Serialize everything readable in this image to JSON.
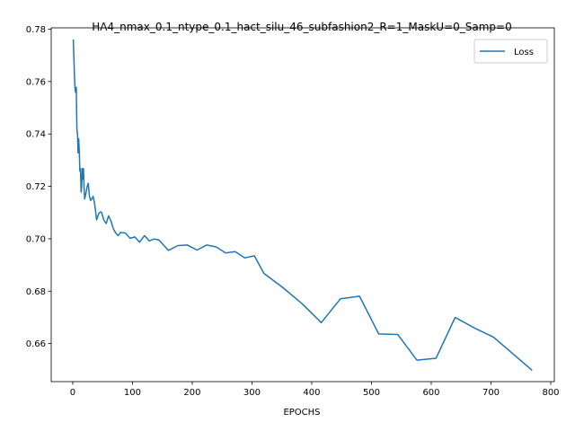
{
  "chart_data": {
    "type": "line",
    "title": "HA4_nmax_0.1_ntype_0.1_hact_silu_46_subfashion2_R=1_MaskU=0_Samp=0",
    "xlabel": "EPOCHS",
    "ylabel": "",
    "xlim": [
      -36,
      806
    ],
    "ylim": [
      0.6455,
      0.7805
    ],
    "xticks": [
      0,
      100,
      200,
      300,
      400,
      500,
      600,
      700,
      800
    ],
    "yticks": [
      0.66,
      0.68,
      0.7,
      0.72,
      0.74,
      0.76,
      0.78
    ],
    "ytick_labels": [
      "0.66",
      "0.68",
      "0.70",
      "0.72",
      "0.74",
      "0.76",
      "0.78"
    ],
    "grid": false,
    "legend_position": "upper right",
    "series": [
      {
        "name": "Loss",
        "color": "#1f77b4",
        "x": [
          1,
          3,
          4,
          5,
          6,
          7,
          8,
          9,
          10,
          11,
          12,
          13,
          14,
          15,
          16,
          17,
          18,
          19,
          20,
          22,
          24,
          26,
          28,
          30,
          32,
          34,
          36,
          38,
          40,
          42,
          44,
          46,
          48,
          52,
          56,
          60,
          64,
          68,
          72,
          76,
          80,
          88,
          96,
          104,
          112,
          120,
          128,
          136,
          144,
          160,
          176,
          192,
          208,
          224,
          240,
          256,
          272,
          288,
          304,
          320,
          352,
          384,
          416,
          448,
          480,
          512,
          544,
          576,
          608,
          640,
          672,
          704,
          768
        ],
        "values": [
          0.7758,
          0.7622,
          0.7568,
          0.7558,
          0.7578,
          0.7418,
          0.7398,
          0.7328,
          0.7382,
          0.7328,
          0.7258,
          0.7268,
          0.7178,
          0.7198,
          0.7268,
          0.7228,
          0.7268,
          0.7198,
          0.7152,
          0.7172,
          0.7198,
          0.7212,
          0.7162,
          0.7146,
          0.7152,
          0.7162,
          0.7142,
          0.7112,
          0.7072,
          0.7086,
          0.7098,
          0.7102,
          0.7102,
          0.7072,
          0.7058,
          0.7088,
          0.7068,
          0.7038,
          0.7022,
          0.7012,
          0.7024,
          0.7022,
          0.7002,
          0.7007,
          0.6987,
          0.7012,
          0.6992,
          0.6999,
          0.6996,
          0.6956,
          0.6974,
          0.6976,
          0.6957,
          0.6976,
          0.6969,
          0.6946,
          0.6951,
          0.6927,
          0.6935,
          0.6868,
          0.6813,
          0.6752,
          0.668,
          0.6771,
          0.6781,
          0.6637,
          0.6635,
          0.6537,
          0.6544,
          0.67,
          0.666,
          0.6625,
          0.65
        ]
      }
    ]
  }
}
